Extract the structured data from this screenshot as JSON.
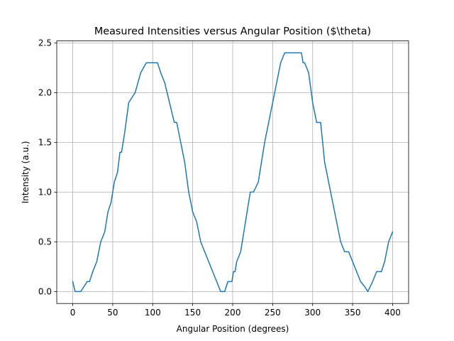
{
  "chart_data": {
    "type": "line",
    "title": "Measured Intensities versus Angular Position ($\\theta)",
    "xlabel": "Angular Position (degrees)",
    "ylabel": "Intensity (a.u.)",
    "xlim": [
      -20,
      420
    ],
    "ylim": [
      -0.12,
      2.52
    ],
    "grid": true,
    "line_color": "#1f77b4",
    "x_ticks": [
      0,
      50,
      100,
      150,
      200,
      250,
      300,
      350,
      400
    ],
    "x_tick_labels": [
      "0",
      "50",
      "100",
      "150",
      "200",
      "250",
      "300",
      "350",
      "400"
    ],
    "y_ticks": [
      0.0,
      0.5,
      1.0,
      1.5,
      2.0,
      2.5
    ],
    "y_tick_labels": [
      "0.0",
      "0.5",
      "1.0",
      "1.5",
      "2.0",
      "2.5"
    ],
    "series": [
      {
        "x": [
          0,
          3,
          6,
          10,
          18,
          21,
          25,
          30,
          35,
          40,
          44,
          48,
          52,
          56,
          59,
          61,
          65,
          70,
          78,
          85,
          92,
          96,
          100,
          106,
          110,
          115,
          118,
          121,
          124,
          127,
          130,
          135,
          140,
          145,
          150,
          155,
          160,
          165,
          170,
          175,
          180,
          185,
          190,
          194,
          199,
          201,
          203,
          205,
          210,
          214,
          218,
          222,
          226,
          232,
          236,
          240,
          245,
          250,
          255,
          260,
          265,
          270,
          275,
          280,
          286,
          288,
          290,
          295,
          300,
          305,
          310,
          315,
          320,
          325,
          330,
          335,
          340,
          345,
          350,
          355,
          360,
          365,
          369,
          375,
          380,
          386,
          390,
          395,
          400
        ],
        "y": [
          0.1,
          0.0,
          0.0,
          0.0,
          0.1,
          0.1,
          0.2,
          0.3,
          0.5,
          0.6,
          0.8,
          0.9,
          1.1,
          1.2,
          1.4,
          1.4,
          1.6,
          1.9,
          2.0,
          2.2,
          2.3,
          2.3,
          2.3,
          2.3,
          2.2,
          2.1,
          2.0,
          1.9,
          1.8,
          1.7,
          1.7,
          1.5,
          1.3,
          1.0,
          0.8,
          0.7,
          0.5,
          0.4,
          0.3,
          0.2,
          0.1,
          0.0,
          0.0,
          0.1,
          0.1,
          0.2,
          0.2,
          0.3,
          0.4,
          0.6,
          0.8,
          1.0,
          1.0,
          1.1,
          1.3,
          1.5,
          1.7,
          1.9,
          2.1,
          2.3,
          2.4,
          2.4,
          2.4,
          2.4,
          2.4,
          2.3,
          2.3,
          2.2,
          1.9,
          1.7,
          1.7,
          1.3,
          1.1,
          0.9,
          0.7,
          0.5,
          0.4,
          0.4,
          0.3,
          0.2,
          0.1,
          0.05,
          0.0,
          0.1,
          0.2,
          0.2,
          0.3,
          0.5,
          0.6
        ]
      }
    ]
  }
}
